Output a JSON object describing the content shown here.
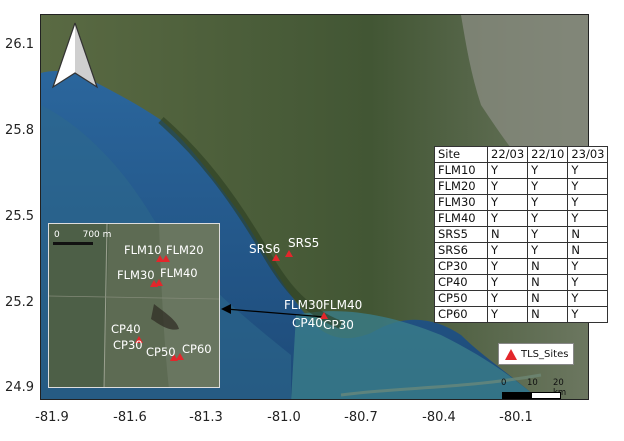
{
  "axes": {
    "y_ticks": [
      "26.1",
      "25.8",
      "25.5",
      "25.2",
      "24.9"
    ],
    "x_ticks": [
      "-81.9",
      "-81.6",
      "-81.3",
      "-81.0",
      "-80.7",
      "-80.4",
      "-80.1"
    ]
  },
  "north_arrow": {
    "icon": "north-arrow-icon"
  },
  "main_map": {
    "sites": [
      {
        "name": "SRS6",
        "label": "SRS6"
      },
      {
        "name": "SRS5",
        "label": "SRS5"
      },
      {
        "name": "FLM30",
        "label": "FLM30"
      },
      {
        "name": "FLM40",
        "label": "FLM40"
      },
      {
        "name": "CP40",
        "label": "CP40"
      },
      {
        "name": "CP30",
        "label": "CP30"
      }
    ]
  },
  "inset": {
    "scale_start": "0",
    "scale_end": "700 m",
    "labels": {
      "flm10": "FLM10",
      "flm20": "FLM20",
      "flm30": "FLM30",
      "flm40": "FLM40",
      "cp40": "CP40",
      "cp30": "CP30",
      "cp50": "CP50",
      "cp60": "CP60"
    }
  },
  "table": {
    "header": [
      "Site",
      "22/03",
      "22/10",
      "23/03"
    ],
    "rows": [
      [
        "FLM10",
        "Y",
        "Y",
        "Y"
      ],
      [
        "FLM20",
        "Y",
        "Y",
        "Y"
      ],
      [
        "FLM30",
        "Y",
        "Y",
        "Y"
      ],
      [
        "FLM40",
        "Y",
        "Y",
        "Y"
      ],
      [
        "SRS5",
        "N",
        "Y",
        "N"
      ],
      [
        "SRS6",
        "Y",
        "Y",
        "N"
      ],
      [
        "CP30",
        "Y",
        "N",
        "Y"
      ],
      [
        "CP40",
        "Y",
        "N",
        "Y"
      ],
      [
        "CP50",
        "Y",
        "N",
        "Y"
      ],
      [
        "CP60",
        "Y",
        "N",
        "Y"
      ]
    ]
  },
  "legend": {
    "label": "TLS_Sites",
    "marker_color": "#e3262b"
  },
  "scale": {
    "t0": "0",
    "t1": "10",
    "t2": "20 km"
  },
  "colors": {
    "water": "#1f4f80",
    "land": "#4f5e3e",
    "marker": "#e3262b"
  }
}
